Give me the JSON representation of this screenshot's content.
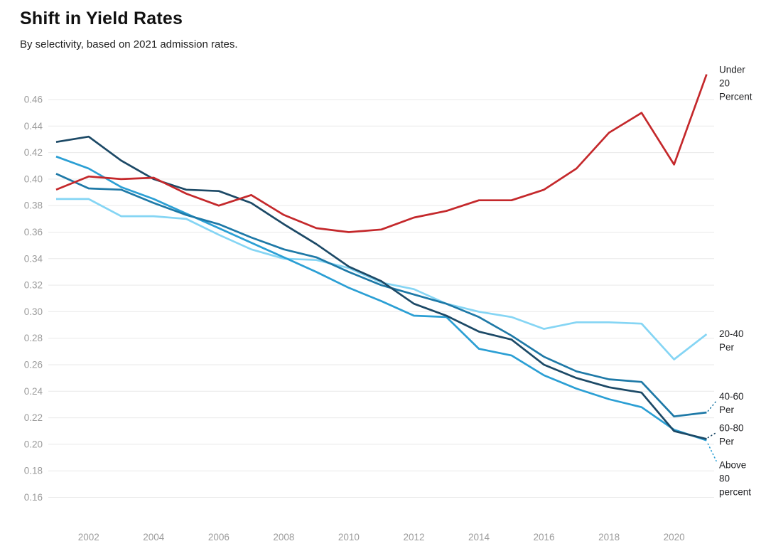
{
  "header": {
    "title": "Shift in Yield Rates",
    "subtitle": "By selectivity, based on 2021 admission rates."
  },
  "colors": {
    "grid": "#e9e9e9",
    "axis_label": "#9b9b9b",
    "series_label_text": "#202124",
    "background": "#ffffff"
  },
  "chart_data": {
    "type": "line",
    "title": "Shift in Yield Rates",
    "subtitle": "By selectivity, based on 2021 admission rates.",
    "xlabel": "",
    "ylabel": "",
    "x": [
      2001,
      2002,
      2003,
      2004,
      2005,
      2006,
      2007,
      2008,
      2009,
      2010,
      2011,
      2012,
      2013,
      2014,
      2015,
      2016,
      2017,
      2018,
      2019,
      2020,
      2021
    ],
    "x_tick_labels": [
      "2002",
      "2004",
      "2006",
      "2008",
      "2010",
      "2012",
      "2014",
      "2016",
      "2018",
      "2020"
    ],
    "x_ticks": [
      2002,
      2004,
      2006,
      2008,
      2010,
      2012,
      2014,
      2016,
      2018,
      2020
    ],
    "y_ticks": [
      0.16,
      0.18,
      0.2,
      0.22,
      0.24,
      0.26,
      0.28,
      0.3,
      0.32,
      0.34,
      0.36,
      0.38,
      0.4,
      0.42,
      0.44,
      0.46
    ],
    "ylim": [
      0.15,
      0.485
    ],
    "xlim": [
      2001,
      2021
    ],
    "grid": "horizontal-only",
    "legend_position": "right-edge-labels",
    "series": [
      {
        "name": "Under 20 Percent",
        "label_lines": [
          "Under",
          "20",
          "Percent"
        ],
        "color": "#c4282b",
        "z": 5,
        "leader": false,
        "label_dy": -10,
        "values": [
          0.392,
          0.402,
          0.4,
          0.401,
          0.389,
          0.38,
          0.388,
          0.373,
          0.363,
          0.36,
          0.362,
          0.371,
          0.376,
          0.384,
          0.384,
          0.392,
          0.408,
          0.435,
          0.45,
          0.411,
          0.479
        ]
      },
      {
        "name": "20-40 Per",
        "label_lines": [
          "20-40",
          "Per"
        ],
        "color": "#85d5f4",
        "z": 1,
        "leader": false,
        "label_dy": -4,
        "values": [
          0.385,
          0.385,
          0.372,
          0.372,
          0.37,
          0.358,
          0.347,
          0.34,
          0.339,
          0.333,
          0.322,
          0.317,
          0.306,
          0.3,
          0.296,
          0.287,
          0.292,
          0.292,
          0.291,
          0.264,
          0.283
        ]
      },
      {
        "name": "40-60 Per",
        "label_lines": [
          "40-60",
          "Per"
        ],
        "color": "#1e79a7",
        "z": 3,
        "leader": true,
        "label_dy": -26,
        "values": [
          0.404,
          0.393,
          0.392,
          0.382,
          0.373,
          0.366,
          0.356,
          0.347,
          0.341,
          0.33,
          0.32,
          0.313,
          0.306,
          0.296,
          0.282,
          0.266,
          0.255,
          0.249,
          0.247,
          0.221,
          0.224
        ]
      },
      {
        "name": "60-80 Per",
        "label_lines": [
          "60-80",
          "Per"
        ],
        "color": "#1c4966",
        "z": 4,
        "leader": true,
        "label_dy": -19,
        "values": [
          0.428,
          0.432,
          0.414,
          0.4,
          0.392,
          0.391,
          0.382,
          0.366,
          0.351,
          0.334,
          0.323,
          0.306,
          0.297,
          0.285,
          0.279,
          0.26,
          0.25,
          0.243,
          0.239,
          0.21,
          0.204
        ]
      },
      {
        "name": "Above 80 percent",
        "label_lines": [
          "Above",
          "80",
          "percent"
        ],
        "color": "#2b9fd4",
        "z": 2,
        "leader": true,
        "label_dy": 31,
        "values": [
          0.417,
          0.408,
          0.394,
          0.385,
          0.374,
          0.363,
          0.352,
          0.341,
          0.33,
          0.318,
          0.308,
          0.297,
          0.296,
          0.272,
          0.267,
          0.252,
          0.242,
          0.234,
          0.228,
          0.211,
          0.203
        ]
      }
    ]
  }
}
